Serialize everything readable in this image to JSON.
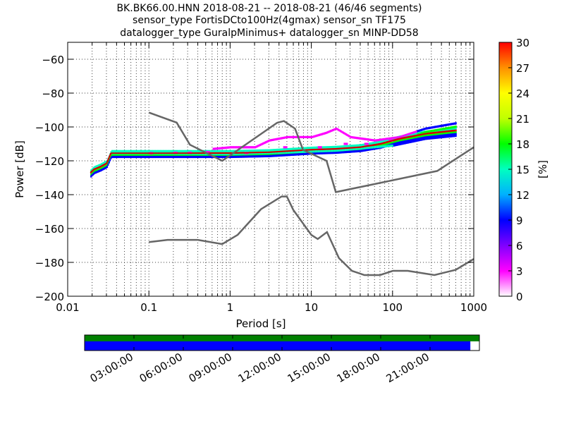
{
  "title": {
    "line1": "BK.BK66.00.HNN   2018-08-21 -- 2018-08-21  (46/46 segments)",
    "line2": "sensor_type FortisDCto100Hz(4gmax) sensor_sn TF175",
    "line3": "datalogger_type GuralpMinimus+ datalogger_sn MINP-DD58"
  },
  "chart_data": [
    {
      "type": "heatmap",
      "xlabel": "Period [s]",
      "ylabel": "Power [dB]",
      "x_scale": "log",
      "xlim": [
        0.01,
        1000
      ],
      "ylim": [
        -200,
        -50
      ],
      "x_ticks": [
        0.01,
        0.1,
        1,
        10,
        100,
        1000
      ],
      "x_tick_labels": [
        "0.01",
        "0.1",
        "1",
        "10",
        "100",
        "1000"
      ],
      "y_ticks": [
        -200,
        -180,
        -160,
        -140,
        -120,
        -100,
        -80,
        -60
      ],
      "y_tick_labels": [
        "−200",
        "−180",
        "−160",
        "−140",
        "−120",
        "−100",
        "−80",
        "−60"
      ],
      "grid": "dotted",
      "colorbar": {
        "label": "[%]",
        "range": [
          0,
          30
        ],
        "ticks": [
          0,
          3,
          6,
          9,
          12,
          15,
          18,
          21,
          24,
          27,
          30
        ],
        "colors": [
          "#ffffff",
          "#ff00ff",
          "#7f00ff",
          "#0000ff",
          "#00b0ff",
          "#00ffc0",
          "#00ff00",
          "#c0ff00",
          "#ffff00",
          "#ff9000",
          "#ff0000"
        ]
      },
      "new_high_noise_model": [
        [
          0.1,
          -91.5
        ],
        [
          0.22,
          -97.4
        ],
        [
          0.32,
          -110.5
        ],
        [
          0.8,
          -120
        ],
        [
          3.8,
          -97.5
        ],
        [
          4.6,
          -96.5
        ],
        [
          6.3,
          -101
        ],
        [
          7.9,
          -113.5
        ],
        [
          15.4,
          -120
        ],
        [
          20,
          -138.5
        ],
        [
          354.8,
          -126
        ],
        [
          1000,
          -112
        ]
      ],
      "new_low_noise_model": [
        [
          0.1,
          -168
        ],
        [
          0.17,
          -166.7
        ],
        [
          0.4,
          -166.7
        ],
        [
          0.8,
          -169.2
        ],
        [
          1.24,
          -163.7
        ],
        [
          2.4,
          -148.6
        ],
        [
          4.3,
          -141.1
        ],
        [
          5,
          -141.1
        ],
        [
          6,
          -149
        ],
        [
          10,
          -163.8
        ],
        [
          12,
          -166.2
        ],
        [
          15.6,
          -162.1
        ],
        [
          21.9,
          -177.5
        ],
        [
          31.6,
          -185
        ],
        [
          45,
          -187.5
        ],
        [
          70,
          -187.5
        ],
        [
          101,
          -185
        ],
        [
          154,
          -185
        ],
        [
          328,
          -187.5
        ],
        [
          600,
          -184.4
        ],
        [
          1000,
          -178
        ]
      ],
      "psd_pdf": {
        "median": [
          [
            0.019,
            -127
          ],
          [
            0.021,
            -125
          ],
          [
            0.025,
            -123.5
          ],
          [
            0.03,
            -121.5
          ],
          [
            0.034,
            -115.5
          ],
          [
            0.1,
            -115.5
          ],
          [
            1,
            -115.5
          ],
          [
            3,
            -115
          ],
          [
            10,
            -113.5
          ],
          [
            20,
            -113
          ],
          [
            40,
            -112
          ],
          [
            70,
            -110
          ],
          [
            120,
            -107
          ],
          [
            250,
            -104
          ],
          [
            600,
            -102
          ]
        ],
        "low_branch": [
          [
            0.034,
            -115.5
          ],
          [
            0.1,
            -115.5
          ],
          [
            1,
            -116
          ],
          [
            5,
            -115
          ],
          [
            20,
            -114
          ],
          [
            100,
            -111
          ],
          [
            250,
            -107
          ],
          [
            650,
            -105
          ]
        ],
        "high_branch": [
          [
            0.6,
            -113
          ],
          [
            1,
            -112
          ],
          [
            2,
            -112
          ],
          [
            3,
            -108
          ],
          [
            5,
            -106
          ],
          [
            10,
            -106
          ],
          [
            15,
            -103.5
          ],
          [
            20,
            -101
          ],
          [
            30,
            -106
          ],
          [
            60,
            -108
          ],
          [
            120,
            -106
          ],
          [
            250,
            -101
          ],
          [
            650,
            -97.5
          ]
        ],
        "outliers": [
          [
            0.1,
            -115.5
          ],
          [
            0.2,
            -115.3
          ],
          [
            0.3,
            -115.3
          ],
          [
            0.5,
            -114.8
          ],
          [
            1.5,
            -115.4
          ],
          [
            4.5,
            -112
          ],
          [
            12,
            -112
          ],
          [
            25,
            -110
          ],
          [
            45,
            -110
          ],
          [
            90,
            -108
          ]
        ]
      }
    },
    {
      "type": "bar",
      "title": "",
      "x_tick_labels": [
        "03:00:00",
        "06:00:00",
        "09:00:00",
        "12:00:00",
        "15:00:00",
        "18:00:00",
        "21:00:00"
      ],
      "rows": [
        {
          "color": "#008000",
          "start_hour": 0,
          "end_hour": 24
        },
        {
          "color": "#0000ff",
          "start_hour": 0,
          "end_hour": 23.45
        }
      ],
      "xlim_hours": [
        0,
        24
      ]
    }
  ]
}
